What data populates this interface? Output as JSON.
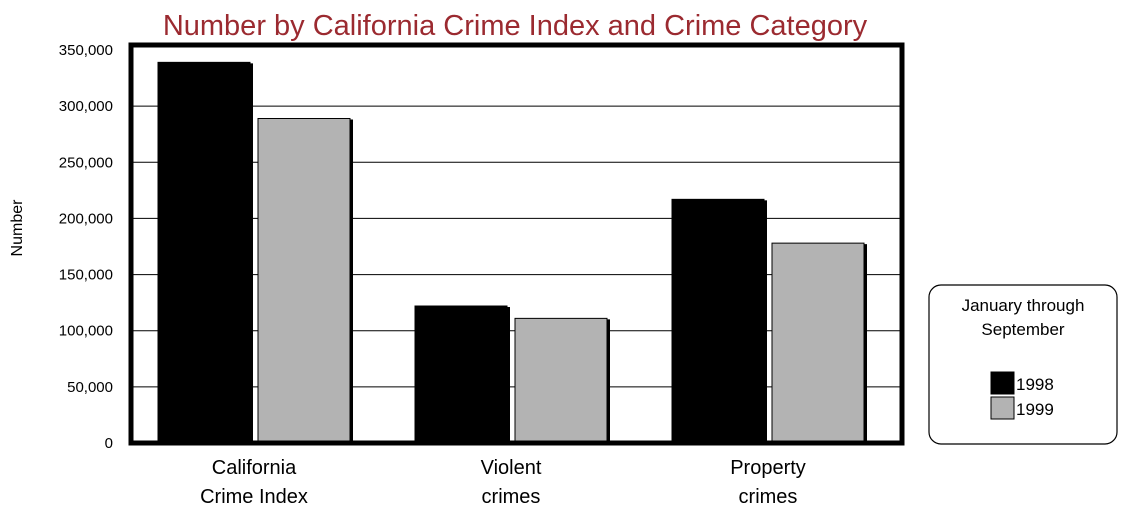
{
  "chart_data": {
    "type": "bar",
    "title": "Number by California Crime Index and Crime Category",
    "ylabel": "Number",
    "xlabel": "",
    "ylim": [
      0,
      350000
    ],
    "yticks": [
      0,
      50000,
      100000,
      150000,
      200000,
      250000,
      300000,
      350000
    ],
    "ytick_labels": [
      "0",
      "50,000",
      "100,000",
      "150,000",
      "200,000",
      "250,000",
      "300,000",
      "350,000"
    ],
    "categories": [
      [
        "California",
        "Crime Index"
      ],
      [
        "Violent",
        "crimes"
      ],
      [
        "Property",
        "crimes"
      ]
    ],
    "series": [
      {
        "name": "1998",
        "values": [
          339000,
          122000,
          217000
        ],
        "color": "#000000"
      },
      {
        "name": "1999",
        "values": [
          289000,
          111000,
          178000
        ],
        "color": "#b3b3b3"
      }
    ],
    "legend": {
      "title_lines": [
        "January through",
        "September"
      ],
      "placement": "right"
    },
    "grid": true
  }
}
